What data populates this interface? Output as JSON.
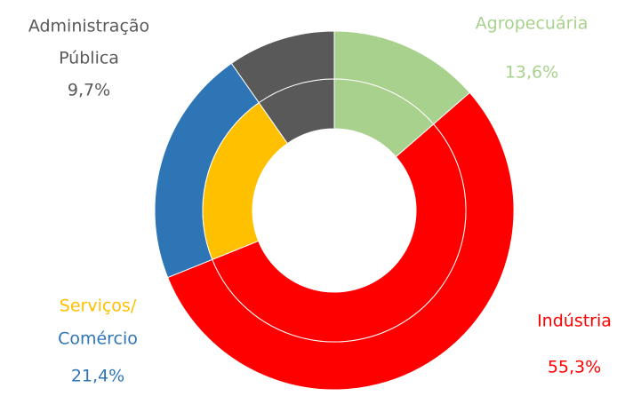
{
  "chart_data": {
    "type": "donut",
    "categories": [
      [
        "Agropecuária"
      ],
      [
        "Indústria"
      ],
      [
        "Serviços/",
        "Comércio"
      ],
      [
        "Administração",
        "Pública"
      ]
    ],
    "values": [
      13.6,
      55.3,
      21.4,
      9.7
    ],
    "value_labels": [
      "13,6%",
      "55,3%",
      "21,4%",
      "9,7%"
    ],
    "colors": [
      "#a9d18e",
      "#ff0000",
      "#2e75b6",
      "#595959"
    ],
    "inner_colors": [
      "#a9d18e",
      "#ff0000",
      "#ffc000",
      "#595959"
    ],
    "label_colors": [
      [
        "#a9d18e"
      ],
      [
        "#ff0000"
      ],
      [
        "#ffc000",
        "#2e75b6"
      ],
      [
        "#595959",
        "#595959"
      ]
    ]
  }
}
